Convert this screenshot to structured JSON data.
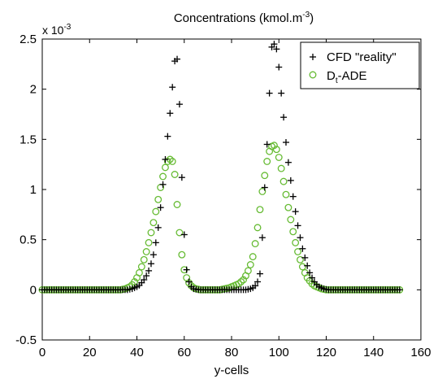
{
  "chart_data": {
    "type": "scatter",
    "title": "Concentrations (kmol.m",
    "title_superscript": "-3",
    "title_suffix": ")",
    "xlabel": "y-cells",
    "ylabel": "",
    "y_scale_factor_base": "x 10",
    "y_scale_factor_exp": "-3",
    "xlim": [
      0,
      160
    ],
    "ylim": [
      -0.5,
      2.5
    ],
    "xticks": [
      0,
      20,
      40,
      60,
      80,
      100,
      120,
      140,
      160
    ],
    "yticks": [
      -0.5,
      0,
      0.5,
      1,
      1.5,
      2,
      2.5
    ],
    "xtick_labels": [
      "0",
      "20",
      "40",
      "60",
      "80",
      "100",
      "120",
      "140",
      "160"
    ],
    "ytick_labels": [
      "-0.5",
      "0",
      "0.5",
      "1",
      "1.5",
      "2",
      "2.5"
    ],
    "grid": false,
    "legend_position": "top-right",
    "series": [
      {
        "name": "CFD \"reality\"",
        "marker": "plus",
        "color": "#000000",
        "x": [
          0,
          1,
          2,
          3,
          4,
          5,
          6,
          7,
          8,
          9,
          10,
          11,
          12,
          13,
          14,
          15,
          16,
          17,
          18,
          19,
          20,
          21,
          22,
          23,
          24,
          25,
          26,
          27,
          28,
          29,
          30,
          31,
          32,
          33,
          34,
          35,
          36,
          37,
          38,
          39,
          40,
          41,
          42,
          43,
          44,
          45,
          46,
          47,
          48,
          49,
          50,
          51,
          52,
          53,
          54,
          55,
          56,
          57,
          58,
          59,
          60,
          61,
          62,
          63,
          64,
          65,
          66,
          67,
          68,
          69,
          70,
          71,
          72,
          73,
          74,
          75,
          76,
          77,
          78,
          79,
          80,
          81,
          82,
          83,
          84,
          85,
          86,
          87,
          88,
          89,
          90,
          91,
          92,
          93,
          94,
          95,
          96,
          97,
          98,
          99,
          100,
          101,
          102,
          103,
          104,
          105,
          106,
          107,
          108,
          109,
          110,
          111,
          112,
          113,
          114,
          115,
          116,
          117,
          118,
          119,
          120,
          121,
          122,
          123,
          124,
          125,
          126,
          127,
          128,
          129,
          130,
          131,
          132,
          133,
          134,
          135,
          136,
          137,
          138,
          139,
          140,
          141,
          142,
          143,
          144,
          145,
          146,
          147,
          148,
          149,
          150,
          151
        ],
        "y": [
          0,
          0,
          0,
          0,
          0,
          0,
          0,
          0,
          0,
          0,
          0,
          0,
          0,
          0,
          0,
          0,
          0,
          0,
          0,
          0,
          0,
          0,
          0,
          0,
          0,
          0,
          0,
          0,
          0,
          0,
          0,
          0,
          0,
          0,
          0,
          0,
          0,
          0.005,
          0.01,
          0.02,
          0.03,
          0.045,
          0.07,
          0.1,
          0.14,
          0.19,
          0.26,
          0.35,
          0.47,
          0.62,
          0.82,
          1.05,
          1.3,
          1.53,
          1.76,
          2.02,
          2.28,
          2.3,
          1.85,
          1.12,
          0.55,
          0.2,
          0.08,
          0.03,
          0.01,
          0.005,
          0,
          0,
          0,
          0,
          0,
          0,
          0,
          0,
          0,
          0,
          0,
          0,
          0,
          0,
          0,
          0,
          0,
          0,
          0,
          0,
          0,
          0.005,
          0.01,
          0.02,
          0.04,
          0.08,
          0.16,
          0.52,
          1.02,
          1.45,
          1.96,
          2.42,
          2.45,
          2.4,
          2.22,
          1.96,
          1.72,
          1.47,
          1.27,
          1.09,
          0.93,
          0.78,
          0.64,
          0.52,
          0.41,
          0.32,
          0.24,
          0.17,
          0.12,
          0.08,
          0.05,
          0.03,
          0.02,
          0.01,
          0.005,
          0,
          0,
          0,
          0,
          0,
          0,
          0,
          0,
          0,
          0,
          0,
          0,
          0,
          0,
          0,
          0,
          0,
          0,
          0,
          0,
          0,
          0,
          0,
          0,
          0,
          0,
          0,
          0,
          0,
          0,
          0
        ]
      },
      {
        "name": "D",
        "name_subscript": "t",
        "name_suffix": "-ADE",
        "marker": "circle",
        "color": "#66bb33",
        "x": [
          0,
          1,
          2,
          3,
          4,
          5,
          6,
          7,
          8,
          9,
          10,
          11,
          12,
          13,
          14,
          15,
          16,
          17,
          18,
          19,
          20,
          21,
          22,
          23,
          24,
          25,
          26,
          27,
          28,
          29,
          30,
          31,
          32,
          33,
          34,
          35,
          36,
          37,
          38,
          39,
          40,
          41,
          42,
          43,
          44,
          45,
          46,
          47,
          48,
          49,
          50,
          51,
          52,
          53,
          54,
          55,
          56,
          57,
          58,
          59,
          60,
          61,
          62,
          63,
          64,
          65,
          66,
          67,
          68,
          69,
          70,
          71,
          72,
          73,
          74,
          75,
          76,
          77,
          78,
          79,
          80,
          81,
          82,
          83,
          84,
          85,
          86,
          87,
          88,
          89,
          90,
          91,
          92,
          93,
          94,
          95,
          96,
          97,
          98,
          99,
          100,
          101,
          102,
          103,
          104,
          105,
          106,
          107,
          108,
          109,
          110,
          111,
          112,
          113,
          114,
          115,
          116,
          117,
          118,
          119,
          120,
          121,
          122,
          123,
          124,
          125,
          126,
          127,
          128,
          129,
          130,
          131,
          132,
          133,
          134,
          135,
          136,
          137,
          138,
          139,
          140,
          141,
          142,
          143,
          144,
          145,
          146,
          147,
          148,
          149,
          150,
          151
        ],
        "y": [
          0,
          0,
          0,
          0,
          0,
          0,
          0,
          0,
          0,
          0,
          0,
          0,
          0,
          0,
          0,
          0,
          0,
          0,
          0,
          0,
          0,
          0,
          0,
          0,
          0,
          0,
          0,
          0,
          0,
          0,
          0,
          0,
          0,
          0,
          0.005,
          0.01,
          0.02,
          0.03,
          0.05,
          0.08,
          0.12,
          0.17,
          0.23,
          0.3,
          0.38,
          0.47,
          0.57,
          0.67,
          0.78,
          0.9,
          1.02,
          1.13,
          1.22,
          1.28,
          1.3,
          1.28,
          1.15,
          0.85,
          0.57,
          0.35,
          0.2,
          0.12,
          0.07,
          0.04,
          0.02,
          0.01,
          0.005,
          0,
          0,
          0,
          0,
          0,
          0,
          0,
          0,
          0,
          0.005,
          0.01,
          0.015,
          0.02,
          0.03,
          0.04,
          0.05,
          0.06,
          0.08,
          0.1,
          0.14,
          0.19,
          0.25,
          0.33,
          0.46,
          0.62,
          0.8,
          0.98,
          1.14,
          1.28,
          1.38,
          1.43,
          1.44,
          1.4,
          1.32,
          1.21,
          1.08,
          0.95,
          0.82,
          0.7,
          0.58,
          0.47,
          0.38,
          0.3,
          0.23,
          0.17,
          0.12,
          0.09,
          0.06,
          0.04,
          0.03,
          0.02,
          0.01,
          0.005,
          0,
          0,
          0,
          0,
          0,
          0,
          0,
          0,
          0,
          0,
          0,
          0,
          0,
          0,
          0,
          0,
          0,
          0,
          0,
          0,
          0,
          0,
          0,
          0,
          0,
          0,
          0,
          0,
          0,
          0,
          0,
          0
        ]
      }
    ]
  }
}
